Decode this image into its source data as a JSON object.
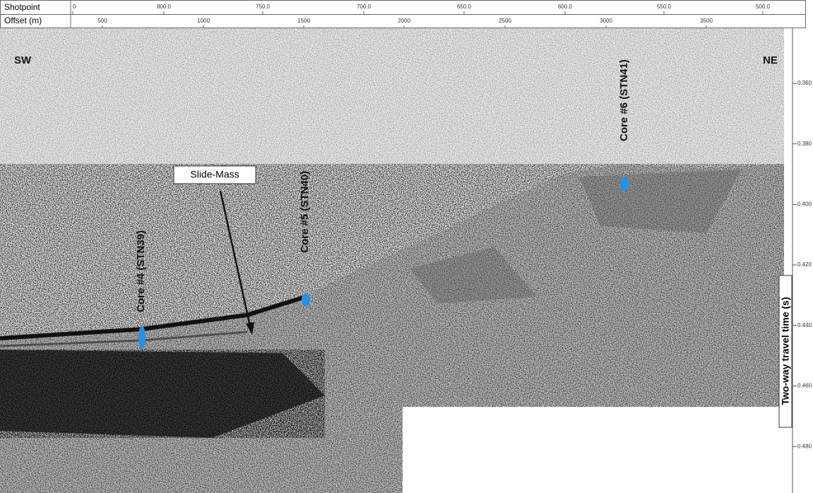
{
  "header": {
    "shotpoint_label": "Shotpoint",
    "offset_label": "Offset (m)",
    "shotpoint_ticks": [
      "0",
      "800.0",
      "750.0",
      "700.0",
      "650.0",
      "600.0",
      "550.0",
      "500.0"
    ],
    "offset_ticks": [
      "500",
      "1000",
      "1500",
      "2000",
      "2500",
      "3000",
      "3500"
    ]
  },
  "profile": {
    "left_label": "SW",
    "right_label": "NE",
    "annotation": "Slide-Mass",
    "cores": [
      "Core #4 (STN39)",
      "Core #5 (STN40)",
      "Core #6 (STN41)"
    ]
  },
  "axis": {
    "title": "Two-way travel time (s)",
    "ticks": [
      "0.360",
      "0.380",
      "0.400",
      "0.420",
      "0.440",
      "0.460",
      "0.480"
    ]
  }
}
